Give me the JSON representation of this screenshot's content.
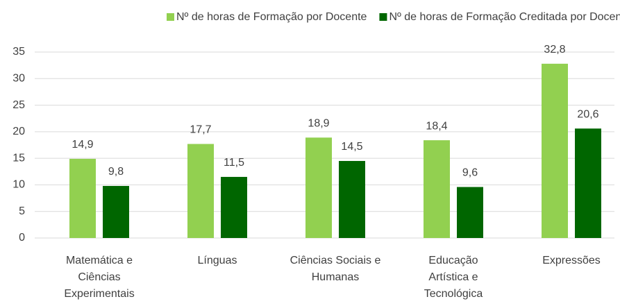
{
  "chart_data": {
    "type": "bar",
    "categories": [
      "Matemática e\nCiências\nExperimentais",
      "Línguas",
      "Ciências Sociais e\nHumanas",
      "Educação\nArtística e\nTecnológica",
      "Expressões"
    ],
    "series": [
      {
        "name": "Nº de horas de Formação por Docente",
        "color": "#92d050",
        "values": [
          14.9,
          17.7,
          18.9,
          18.4,
          32.8
        ],
        "value_labels": [
          "14,9",
          "17,7",
          "18,9",
          "18,4",
          "32,8"
        ]
      },
      {
        "name": "Nº de horas de Formação Creditada por Docente",
        "color": "#006600",
        "values": [
          9.8,
          11.5,
          14.5,
          9.6,
          20.6
        ],
        "value_labels": [
          "9,8",
          "11,5",
          "14,5",
          "9,6",
          "20,6"
        ]
      }
    ],
    "ylim": [
      0,
      35
    ],
    "yticks": [
      0,
      5,
      10,
      15,
      20,
      25,
      30,
      35
    ],
    "grid": true,
    "legend": "top"
  }
}
